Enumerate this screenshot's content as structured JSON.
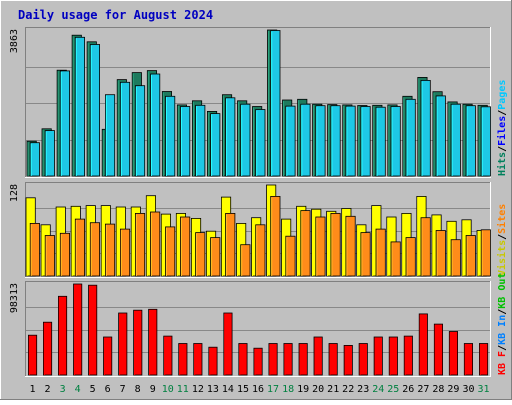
{
  "chart_data": {
    "type": "bar",
    "title": "Daily usage for August 2024",
    "days": [
      "1",
      "2",
      "3",
      "4",
      "5",
      "6",
      "7",
      "8",
      "9",
      "10",
      "11",
      "12",
      "13",
      "14",
      "15",
      "16",
      "17",
      "18",
      "19",
      "20",
      "21",
      "22",
      "23",
      "24",
      "25",
      "26",
      "27",
      "28",
      "29",
      "30",
      "31"
    ],
    "weekend_days": [
      "3",
      "4",
      "10",
      "11",
      "17",
      "18",
      "24",
      "25",
      "31"
    ],
    "panels": [
      {
        "max_label": "3863",
        "ylim": [
          0,
          3863
        ],
        "legend": [
          {
            "text": "Hits",
            "color": "#00805c"
          },
          {
            "text": "/",
            "color": "#000000"
          },
          {
            "text": "Files",
            "color": "#0000ff"
          },
          {
            "text": "/",
            "color": "#000000"
          },
          {
            "text": "Pages",
            "color": "#00c8ff"
          }
        ],
        "series": [
          {
            "name": "Hits",
            "color": "#1e7a5e",
            "values": [
              920,
              1250,
              2800,
              3725,
              3550,
              1235,
              2550,
              2735,
              2790,
              2235,
              1880,
              1990,
              1710,
              2150,
              1990,
              1840,
              3863,
              2010,
              2030,
              1900,
              1890,
              1880,
              1865,
              1870,
              1880,
              2110,
              2610,
              2230,
              1960,
              1900,
              1870
            ]
          },
          {
            "name": "Files",
            "color": "#0a2fd8",
            "values": [
              440,
              610,
              1270,
              1640,
              1510,
              650,
              1100,
              1190,
              1220,
              1010,
              880,
              920,
              810,
              990,
              920,
              860,
              1650,
              920,
              930,
              880,
              875,
              870,
              865,
              870,
              875,
              960,
              1130,
              1010,
              900,
              880,
              870
            ]
          },
          {
            "name": "Pages",
            "color": "#1ec8e6",
            "values": [
              880,
              1200,
              2780,
              3670,
              3480,
              2150,
              2480,
              2390,
              2700,
              2110,
              1840,
              1870,
              1650,
              2070,
              1900,
              1760,
              3850,
              1850,
              1900,
              1860,
              1860,
              1850,
              1840,
              1820,
              1840,
              2030,
              2530,
              2120,
              1900,
              1860,
              1830
            ]
          }
        ]
      },
      {
        "max_label": "128",
        "ylim": [
          0,
          128
        ],
        "legend": [
          {
            "text": "Visits",
            "color": "#c8c800"
          },
          {
            "text": "/",
            "color": "#000000"
          },
          {
            "text": "Sites",
            "color": "#ff8000"
          }
        ],
        "series": [
          {
            "name": "Visits",
            "color": "#ffff00",
            "values": [
              110,
              72,
              97,
              98,
              99,
              99,
              97,
              97,
              113,
              87,
              88,
              81,
              63,
              111,
              74,
              82,
              128,
              80,
              98,
              94,
              91,
              95,
              72,
              99,
              83,
              88,
              112,
              86,
              77,
              79,
              64
            ]
          },
          {
            "name": "Sites",
            "color": "#ff8c1a",
            "values": [
              74,
              57,
              60,
              80,
              75,
              73,
              66,
              88,
              90,
              69,
              83,
              61,
              54,
              88,
              44,
              72,
              112,
              56,
              92,
              83,
              88,
              84,
              61,
              66,
              48,
              54,
              82,
              64,
              51,
              57,
              65
            ]
          }
        ]
      },
      {
        "max_label": "98313",
        "ylim": [
          0,
          98313
        ],
        "legend": [
          {
            "text": "KB F",
            "color": "#ff0000"
          },
          {
            "text": "/",
            "color": "#000000"
          },
          {
            "text": "KB In",
            "color": "#0080ff"
          },
          {
            "text": "/",
            "color": "#000000"
          },
          {
            "text": "KB Out",
            "color": "#00c000"
          }
        ],
        "series": [
          {
            "name": "KB F",
            "color": "#ff0000",
            "values": [
              43000,
              57000,
              85000,
              98313,
              97000,
              41000,
              67000,
              70000,
              71000,
              42000,
              34000,
              34000,
              30000,
              67000,
              34000,
              29000,
              34000,
              34000,
              34000,
              41000,
              34000,
              32000,
              34000,
              41000,
              41000,
              42000,
              66000,
              55000,
              47000,
              34000,
              34000
            ]
          }
        ]
      }
    ]
  }
}
